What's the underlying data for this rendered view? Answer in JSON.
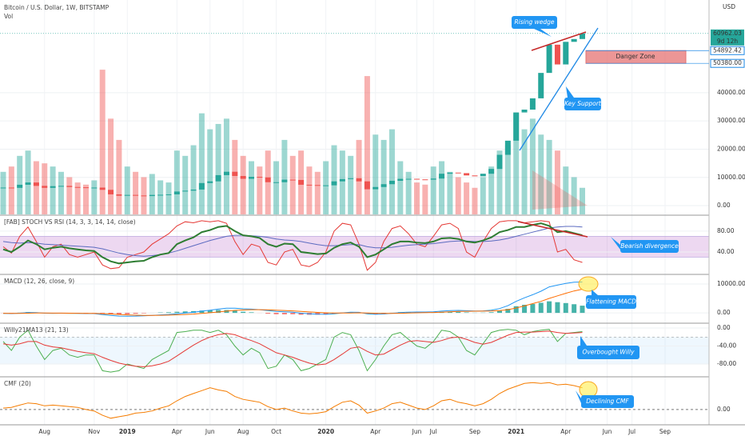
{
  "chart_data": [
    {
      "type": "candlestick",
      "title": "Bitcoin / U.S. Dollar, 1W, BITSTAMP",
      "subtitle": "Vol",
      "currency": "USD",
      "countdown": "9d 12h",
      "categories": [
        null,
        null,
        null,
        null,
        null,
        "Aug",
        null,
        null,
        null,
        null,
        null,
        "Nov",
        null,
        null,
        null,
        "2019",
        null,
        null,
        null,
        null,
        null,
        "Apr",
        null,
        null,
        null,
        "Jun",
        null,
        null,
        null,
        "Aug",
        null,
        null,
        null,
        "Oct",
        null,
        null,
        null,
        null,
        null,
        "2020",
        null,
        null,
        null,
        null,
        null,
        "Apr",
        null,
        null,
        null,
        null,
        "Jun",
        null,
        "Jul",
        null,
        null,
        null,
        null,
        "Sep",
        null,
        null,
        null,
        null,
        "2021",
        null,
        null,
        null,
        null,
        null,
        "Apr",
        null,
        null,
        null,
        null,
        "Jun",
        null,
        null,
        "Jul",
        null,
        null,
        null,
        "Sep"
      ],
      "values": [
        6400,
        6300,
        7400,
        8200,
        7000,
        6300,
        6900,
        7000,
        6600,
        6500,
        6400,
        6400,
        5600,
        4000,
        3500,
        3800,
        3600,
        3400,
        3800,
        3850,
        4000,
        5000,
        5300,
        5700,
        8000,
        8600,
        10800,
        12000,
        10500,
        9500,
        10200,
        10000,
        8300,
        8300,
        9200,
        9100,
        7400,
        7300,
        7200,
        7200,
        8600,
        9400,
        9700,
        8600,
        5800,
        6600,
        7600,
        8800,
        9500,
        9500,
        9300,
        9200,
        9600,
        11300,
        11700,
        11500,
        10700,
        10400,
        11300,
        13000,
        18000,
        23000,
        33000,
        34000,
        38000,
        47000,
        57000,
        50000,
        58000,
        59000,
        60962.03,
        null,
        null,
        null,
        null,
        null,
        null,
        null,
        null,
        null,
        null
      ],
      "volume": [
        40000,
        45000,
        55000,
        60000,
        50000,
        48000,
        45000,
        40000,
        35000,
        30000,
        28000,
        32000,
        136000,
        90000,
        70000,
        45000,
        40000,
        35000,
        38000,
        32000,
        30000,
        60000,
        55000,
        65000,
        95000,
        80000,
        85000,
        90000,
        70000,
        55000,
        50000,
        45000,
        60000,
        50000,
        70000,
        55000,
        60000,
        45000,
        40000,
        50000,
        65000,
        60000,
        55000,
        70000,
        130000,
        75000,
        70000,
        80000,
        50000,
        40000,
        30000,
        28000,
        45000,
        50000,
        40000,
        35000,
        30000,
        25000,
        35000,
        45000,
        60000,
        65000,
        95000,
        80000,
        90000,
        75000,
        70000,
        60000,
        45000,
        35000,
        25000,
        null,
        null,
        null,
        null,
        null,
        null,
        null,
        null,
        null,
        null
      ],
      "up_color": "#26a69a",
      "down_color": "#ef5350",
      "ylim": [
        -3100,
        72250
      ],
      "y2lim": [
        0,
        200000
      ],
      "yticks": [
        {
          "value": 0,
          "label": "0.00"
        },
        {
          "value": 10000,
          "label": "10000.00"
        },
        {
          "value": 20000,
          "label": "20000.00"
        },
        {
          "value": 30000,
          "label": "30000.00"
        },
        {
          "value": 40000,
          "label": "40000.00"
        }
      ],
      "levels": [
        54892.42,
        {
          "value": 50380,
          "label": "50380.00"
        }
      ],
      "annotations": [
        "Rising wedge",
        "Key Support",
        "Danger Zone"
      ],
      "grid": true
    },
    {
      "type": "line",
      "title": "[FAB] STOCH VS RSI (14, 3, 3, 14, 14, close)",
      "ylim": [
        -1.5,
        109
      ],
      "band": [
        30,
        70
      ],
      "yticks": [
        {
          "value": 80,
          "label": "80.00"
        },
        {
          "value": 40,
          "label": "40.00"
        }
      ],
      "series": [
        {
          "color": "#e53935",
          "values": [
            50,
            38,
            70,
            88,
            60,
            30,
            50,
            55,
            35,
            30,
            35,
            40,
            15,
            8,
            10,
            30,
            35,
            40,
            55,
            65,
            75,
            90,
            98,
            96,
            100,
            98,
            100,
            95,
            60,
            35,
            55,
            50,
            20,
            15,
            40,
            45,
            15,
            12,
            20,
            40,
            80,
            95,
            92,
            55,
            5,
            20,
            60,
            85,
            90,
            75,
            55,
            50,
            70,
            92,
            95,
            85,
            40,
            30,
            60,
            85,
            98,
            100,
            100,
            96,
            98,
            100,
            98,
            40,
            45,
            25,
            20,
            null,
            null,
            null,
            null,
            null,
            null,
            null,
            null,
            null,
            null
          ]
        },
        {
          "color": "#5c6bc0",
          "values": [
            60,
            58,
            57,
            58,
            57,
            55,
            54,
            53,
            52,
            51,
            50,
            49,
            46,
            42,
            38,
            35,
            33,
            32,
            33,
            35,
            38,
            42,
            47,
            52,
            57,
            62,
            66,
            70,
            72,
            72,
            71,
            70,
            68,
            65,
            63,
            62,
            60,
            57,
            54,
            52,
            52,
            53,
            54,
            54,
            50,
            48,
            48,
            49,
            51,
            53,
            54,
            55,
            56,
            58,
            60,
            61,
            61,
            60,
            60,
            61,
            63,
            66,
            70,
            74,
            78,
            82,
            86,
            88,
            89,
            89,
            88,
            null,
            null,
            null,
            null,
            null,
            null,
            null,
            null,
            null,
            null
          ]
        },
        {
          "color": "#2e7d32",
          "width": 2,
          "values": [
            45,
            40,
            50,
            62,
            55,
            45,
            48,
            50,
            47,
            45,
            43,
            42,
            30,
            22,
            18,
            20,
            22,
            23,
            30,
            35,
            38,
            55,
            62,
            68,
            78,
            82,
            88,
            90,
            80,
            72,
            70,
            67,
            55,
            50,
            56,
            55,
            40,
            38,
            36,
            37,
            48,
            55,
            58,
            50,
            30,
            35,
            45,
            55,
            60,
            60,
            58,
            57,
            60,
            66,
            67,
            65,
            60,
            58,
            62,
            68,
            78,
            82,
            88,
            88,
            92,
            95,
            90,
            78,
            80,
            76,
            72,
            null,
            null,
            null,
            null,
            null,
            null,
            null,
            null,
            null,
            null
          ]
        }
      ],
      "annotations": [
        "Bearish divergence"
      ],
      "grid": true
    },
    {
      "type": "line",
      "title": "MACD (12, 26, close, 9)",
      "ylim": [
        -3300,
        13050
      ],
      "yticks": [
        {
          "value": 10000,
          "label": "10000.00"
        },
        {
          "value": 0,
          "label": "0.00"
        }
      ],
      "series": [
        {
          "type": "bar",
          "color": "#26a69a",
          "values": [
            -50,
            -70,
            70,
            250,
            150,
            -50,
            -70,
            -10,
            -50,
            -70,
            -90,
            -60,
            -330,
            -500,
            -540,
            -450,
            -300,
            -150,
            10,
            130,
            220,
            380,
            510,
            610,
            800,
            850,
            1000,
            1000,
            750,
            400,
            200,
            -20,
            -270,
            -450,
            -480,
            -450,
            -620,
            -640,
            -620,
            -530,
            -240,
            70,
            270,
            170,
            -270,
            -370,
            -200,
            50,
            250,
            320,
            280,
            210,
            200,
            350,
            420,
            350,
            190,
            60,
            90,
            230,
            700,
            1400,
            2300,
            2800,
            3100,
            3500,
            4000,
            3700,
            3400,
            3000,
            2500,
            null,
            null,
            null,
            null,
            null,
            null,
            null,
            null,
            null,
            null
          ]
        },
        {
          "color": "#2196f3",
          "values": [
            -200,
            -250,
            -100,
            150,
            100,
            -100,
            -150,
            -100,
            -150,
            -200,
            -250,
            -250,
            -600,
            -900,
            -1100,
            -1150,
            -1100,
            -1000,
            -850,
            -700,
            -550,
            -300,
            -50,
            200,
            600,
            900,
            1300,
            1600,
            1600,
            1400,
            1300,
            1100,
            800,
            500,
            350,
            250,
            -100,
            -300,
            -450,
            -500,
            -300,
            0,
            250,
            200,
            -300,
            -500,
            -400,
            -150,
            100,
            250,
            300,
            300,
            350,
            600,
            800,
            850,
            750,
            650,
            700,
            900,
            1500,
            2500,
            4000,
            5200,
            6300,
            7500,
            9000,
            9600,
            10200,
            10600,
            10700,
            null,
            null,
            null,
            null,
            null,
            null,
            null,
            null,
            null,
            null
          ]
        },
        {
          "color": "#ff6d00",
          "values": [
            -150,
            -180,
            -170,
            -100,
            -50,
            -50,
            -80,
            -90,
            -100,
            -130,
            -160,
            -190,
            -270,
            -400,
            -560,
            -700,
            -800,
            -850,
            -860,
            -830,
            -770,
            -680,
            -560,
            -410,
            -200,
            50,
            300,
            600,
            850,
            1000,
            1100,
            1120,
            1070,
            950,
            830,
            700,
            520,
            340,
            170,
            30,
            -60,
            -70,
            -20,
            30,
            -30,
            -130,
            -200,
            -200,
            -150,
            -70,
            20,
            90,
            150,
            250,
            380,
            500,
            560,
            590,
            610,
            670,
            800,
            1100,
            1700,
            2400,
            3200,
            4000,
            5000,
            5900,
            6800,
            7600,
            8200,
            null,
            null,
            null,
            null,
            null,
            null,
            null,
            null,
            null,
            null
          ]
        }
      ],
      "annotations": [
        "Flattening MACD"
      ],
      "grid": true
    },
    {
      "type": "line",
      "title": "Willy21MA13 (21, 13)",
      "ylim": [
        -106.7,
        8.9
      ],
      "band": [
        -20,
        -80
      ],
      "yticks": [
        {
          "value": 0,
          "label": "0.00"
        },
        {
          "value": -40,
          "label": "-40.00"
        },
        {
          "value": -80,
          "label": "-80.00"
        }
      ],
      "series": [
        {
          "color": "#4caf50",
          "values": [
            -30,
            -50,
            -20,
            -5,
            -40,
            -70,
            -50,
            -45,
            -60,
            -65,
            -60,
            -60,
            -95,
            -98,
            -95,
            -80,
            -85,
            -90,
            -70,
            -60,
            -50,
            -10,
            -8,
            -5,
            -5,
            -10,
            -5,
            -15,
            -40,
            -60,
            -45,
            -55,
            -90,
            -85,
            -60,
            -70,
            -95,
            -90,
            -80,
            -70,
            -20,
            -10,
            -15,
            -50,
            -95,
            -70,
            -40,
            -15,
            -10,
            -25,
            -40,
            -45,
            -30,
            -5,
            -8,
            -20,
            -50,
            -60,
            -35,
            -10,
            -5,
            -3,
            -5,
            -15,
            -8,
            -5,
            -3,
            -30,
            -12,
            -10,
            -8,
            null,
            null,
            null,
            null,
            null,
            null,
            null,
            null,
            null,
            null
          ]
        },
        {
          "color": "#e53935",
          "values": [
            -35,
            -38,
            -35,
            -30,
            -30,
            -38,
            -42,
            -44,
            -48,
            -52,
            -55,
            -57,
            -65,
            -72,
            -78,
            -82,
            -85,
            -86,
            -84,
            -80,
            -74,
            -62,
            -50,
            -38,
            -28,
            -20,
            -15,
            -12,
            -15,
            -22,
            -28,
            -35,
            -45,
            -55,
            -60,
            -65,
            -72,
            -78,
            -82,
            -80,
            -70,
            -58,
            -45,
            -42,
            -52,
            -60,
            -58,
            -48,
            -38,
            -30,
            -28,
            -30,
            -32,
            -28,
            -22,
            -20,
            -25,
            -32,
            -36,
            -32,
            -24,
            -16,
            -10,
            -9,
            -9,
            -8,
            -7,
            -10,
            -12,
            -11,
            -10,
            null,
            null,
            null,
            null,
            null,
            null,
            null,
            null,
            null,
            null
          ]
        }
      ],
      "annotations": [
        "Overbought Willy"
      ],
      "grid": true
    },
    {
      "type": "line",
      "title": "CMF (20)",
      "ylim": [
        -0.2,
        0.44
      ],
      "yticks": [
        {
          "value": 0,
          "label": "0.00"
        }
      ],
      "series": [
        {
          "color": "#f57c00",
          "values": [
            0.02,
            0.03,
            0.06,
            0.09,
            0.08,
            0.05,
            0.06,
            0.05,
            0.04,
            0.03,
            0.0,
            -0.02,
            -0.08,
            -0.12,
            -0.1,
            -0.08,
            -0.05,
            -0.04,
            -0.02,
            0.02,
            0.05,
            0.12,
            0.18,
            0.22,
            0.26,
            0.3,
            0.27,
            0.25,
            0.18,
            0.14,
            0.12,
            0.1,
            0.04,
            0.0,
            0.02,
            -0.02,
            -0.05,
            -0.06,
            -0.05,
            -0.03,
            0.04,
            0.1,
            0.12,
            0.06,
            -0.05,
            -0.02,
            0.02,
            0.08,
            0.1,
            0.06,
            0.02,
            0.0,
            0.05,
            0.12,
            0.14,
            0.1,
            0.08,
            0.05,
            0.08,
            0.14,
            0.22,
            0.28,
            0.32,
            0.36,
            0.37,
            0.36,
            0.37,
            0.34,
            0.35,
            0.33,
            0.3,
            null,
            null,
            null,
            null,
            null,
            null,
            null,
            null,
            null,
            null
          ]
        }
      ],
      "annotations": [
        "Declining CMF"
      ],
      "grid": true
    }
  ]
}
